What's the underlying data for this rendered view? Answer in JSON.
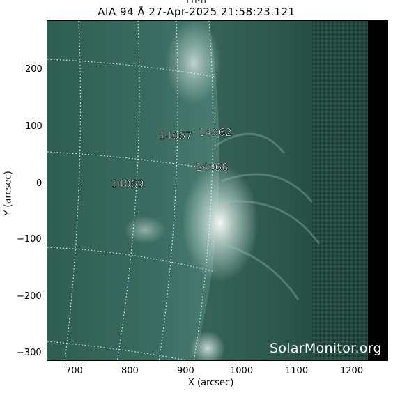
{
  "header": {
    "top_label": "HMI",
    "title": "AIA 94 Å 27-Apr-2025 21:58:23.121"
  },
  "axes": {
    "xlabel": "X (arcsec)",
    "ylabel": "Y (arcsec)",
    "x_ticks": [
      "700",
      "800",
      "900",
      "1000",
      "1100",
      "1200"
    ],
    "y_ticks": [
      "200",
      "100",
      "0",
      "−100",
      "−200",
      "−300"
    ]
  },
  "regions": [
    {
      "id": "14067"
    },
    {
      "id": "14062"
    },
    {
      "id": "14066"
    },
    {
      "id": "14069"
    }
  ],
  "watermark": "SolarMonitor.org",
  "colors": {
    "sun_base": "#2f5e52",
    "sun_bright": "#e8f3ee",
    "corona": "#2a5548",
    "space": "#000000"
  }
}
